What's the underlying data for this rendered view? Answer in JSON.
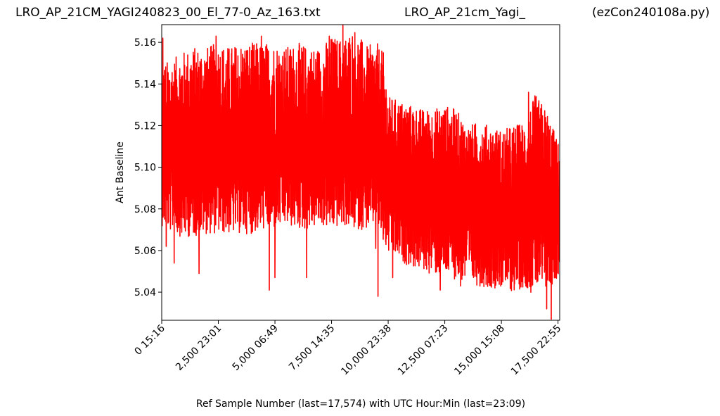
{
  "header": {
    "left_title": "LRO_AP_21CM_YAGI240823_00_El_77-0_Az_163.txt",
    "middle_title": "LRO_AP_21cm_Yagi_",
    "right_title": "(ezCon240108a.py)"
  },
  "chart_data": {
    "type": "line",
    "title": "",
    "xlabel": "Ref Sample Number (last=17,574) with UTC Hour:Min (last=23:09)",
    "ylabel": "Ant Baseline",
    "xlim": [
      0,
      17574
    ],
    "ylim": [
      5.0265,
      5.1685
    ],
    "grid": false,
    "color": "#ff0000",
    "x_ticks": [
      {
        "value": 0,
        "label": "0  15:16"
      },
      {
        "value": 2500,
        "label": "2,500  23:01"
      },
      {
        "value": 5000,
        "label": "5,000  06:49"
      },
      {
        "value": 7500,
        "label": "7,500  14:35"
      },
      {
        "value": 10000,
        "label": "10,000  23:38"
      },
      {
        "value": 12500,
        "label": "12,500  07:23"
      },
      {
        "value": 15000,
        "label": "15,000  15:08"
      },
      {
        "value": 17500,
        "label": "17,500  22:55"
      }
    ],
    "y_ticks": [
      {
        "value": 5.04,
        "label": "5.04"
      },
      {
        "value": 5.06,
        "label": "5.06"
      },
      {
        "value": 5.08,
        "label": "5.08"
      },
      {
        "value": 5.1,
        "label": "5.10"
      },
      {
        "value": 5.12,
        "label": "5.12"
      },
      {
        "value": 5.14,
        "label": "5.14"
      },
      {
        "value": 5.16,
        "label": "5.16"
      }
    ],
    "series": [
      {
        "x": [
          0,
          500,
          1000,
          1500,
          2000,
          2500,
          3000,
          3500,
          4000,
          4500,
          5000,
          5500,
          6000,
          6500,
          7000,
          7500,
          8000,
          8500,
          9000,
          9500,
          9800,
          10000,
          10500,
          11000,
          11500,
          12000,
          12500,
          13000,
          13500,
          14000,
          14500,
          15000,
          15500,
          16000,
          16500,
          17000,
          17574
        ],
        "mean": [
          5.108,
          5.107,
          5.107,
          5.108,
          5.107,
          5.106,
          5.107,
          5.108,
          5.107,
          5.107,
          5.107,
          5.108,
          5.108,
          5.109,
          5.108,
          5.108,
          5.109,
          5.108,
          5.109,
          5.108,
          5.104,
          5.098,
          5.096,
          5.095,
          5.093,
          5.091,
          5.089,
          5.087,
          5.084,
          5.082,
          5.08,
          5.079,
          5.078,
          5.079,
          5.08,
          5.078,
          5.077
        ],
        "upper": [
          5.15,
          5.152,
          5.156,
          5.158,
          5.158,
          5.16,
          5.158,
          5.16,
          5.16,
          5.16,
          5.16,
          5.158,
          5.16,
          5.158,
          5.158,
          5.163,
          5.162,
          5.168,
          5.158,
          5.16,
          5.155,
          5.134,
          5.132,
          5.13,
          5.128,
          5.128,
          5.13,
          5.128,
          5.12,
          5.122,
          5.12,
          5.118,
          5.12,
          5.122,
          5.135,
          5.128,
          5.11
        ],
        "lower": [
          5.072,
          5.068,
          5.066,
          5.067,
          5.068,
          5.068,
          5.068,
          5.068,
          5.068,
          5.07,
          5.07,
          5.072,
          5.07,
          5.07,
          5.072,
          5.07,
          5.072,
          5.07,
          5.07,
          5.072,
          5.062,
          5.058,
          5.055,
          5.052,
          5.05,
          5.048,
          5.048,
          5.046,
          5.044,
          5.043,
          5.042,
          5.042,
          5.04,
          5.042,
          5.042,
          5.04,
          5.048
        ],
        "spikes_low": [
          {
            "x": 200,
            "y": 5.062
          },
          {
            "x": 550,
            "y": 5.054
          },
          {
            "x": 1650,
            "y": 5.049
          },
          {
            "x": 4750,
            "y": 5.041
          },
          {
            "x": 5000,
            "y": 5.047
          },
          {
            "x": 6400,
            "y": 5.047
          },
          {
            "x": 9450,
            "y": 5.061
          },
          {
            "x": 9550,
            "y": 5.038
          },
          {
            "x": 10200,
            "y": 5.047
          },
          {
            "x": 12300,
            "y": 5.041
          },
          {
            "x": 13200,
            "y": 5.043
          },
          {
            "x": 16300,
            "y": 5.04
          },
          {
            "x": 17000,
            "y": 5.032
          },
          {
            "x": 17200,
            "y": 5.027
          }
        ],
        "spikes_high": [
          {
            "x": 50,
            "y": 5.162
          },
          {
            "x": 2400,
            "y": 5.163
          },
          {
            "x": 4400,
            "y": 5.163
          },
          {
            "x": 7400,
            "y": 5.163
          },
          {
            "x": 8000,
            "y": 5.169
          },
          {
            "x": 16200,
            "y": 5.136
          }
        ]
      }
    ]
  }
}
